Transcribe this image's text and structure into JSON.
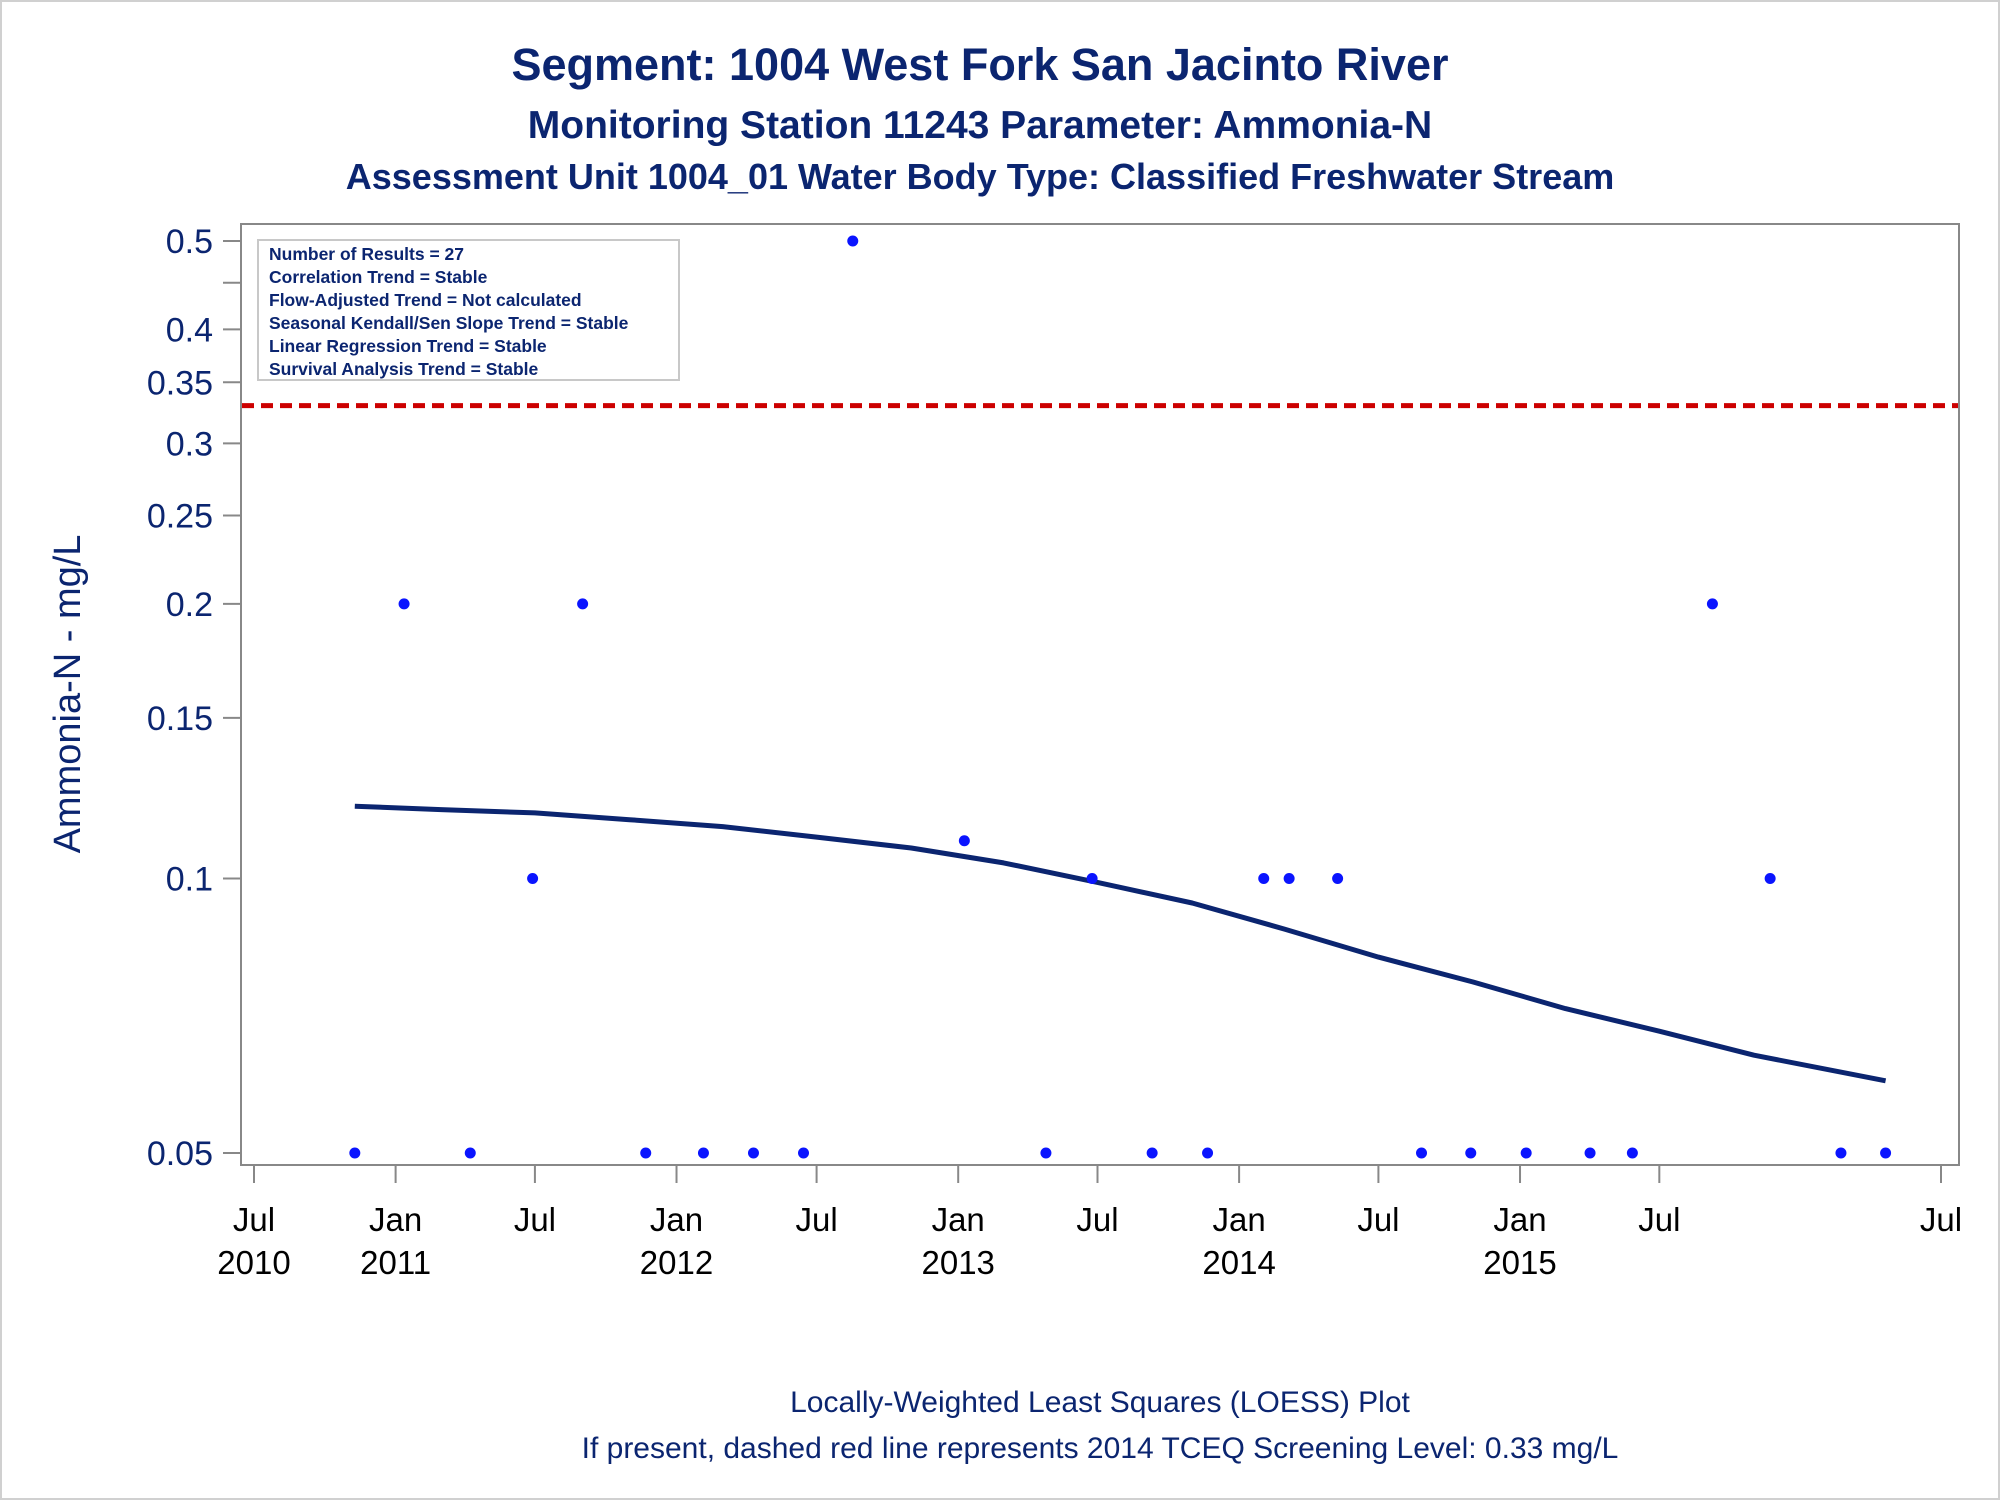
{
  "titles": {
    "line1": "Segment: 1004  West Fork San Jacinto River",
    "line2": "Monitoring Station 11243 Parameter: Ammonia-N",
    "line3": "Assessment Unit 1004_01   Water Body Type: Classified Freshwater Stream"
  },
  "info_box": [
    "Number of Results = 27",
    "Correlation Trend = Stable",
    "Flow-Adjusted Trend = Not calculated",
    "Seasonal Kendall/Sen Slope Trend = Stable",
    "Linear Regression Trend = Stable",
    "Survival Analysis Trend = Stable"
  ],
  "footnotes": {
    "line1": "Locally-Weighted Least Squares (LOESS) Plot",
    "line2": "If present, dashed red line represents 2014 TCEQ Screening Level: 0.33 mg/L"
  },
  "colors": {
    "text": "#0b2570",
    "points": "#0a14ff",
    "loess": "#0b2570",
    "screening": "#cc0000",
    "axis": "#888888"
  },
  "chart_data": {
    "type": "scatter",
    "ylabel": "Ammonia-N - mg/L",
    "y_scale": "log",
    "ylim": [
      0.05,
      0.5
    ],
    "y_ticks": [
      {
        "value": 0.05,
        "label": "0.05"
      },
      {
        "value": 0.1,
        "label": "0.1"
      },
      {
        "value": 0.15,
        "label": "0.15"
      },
      {
        "value": 0.2,
        "label": "0.2"
      },
      {
        "value": 0.25,
        "label": "0.25"
      },
      {
        "value": 0.3,
        "label": "0.3"
      },
      {
        "value": 0.35,
        "label": "0.35"
      },
      {
        "value": 0.4,
        "label": "0.4"
      },
      {
        "value": 0.5,
        "label": "0.5"
      }
    ],
    "y_minor_ticks": [
      0.45
    ],
    "xlim": [
      "2010-07-01",
      "2016-07-01"
    ],
    "x_ticks": [
      {
        "date": "2010-07-01",
        "month": "Jul",
        "year": "2010"
      },
      {
        "date": "2011-01-01",
        "month": "Jan",
        "year": "2011"
      },
      {
        "date": "2011-07-01",
        "month": "Jul",
        "year": ""
      },
      {
        "date": "2012-01-01",
        "month": "Jan",
        "year": "2012"
      },
      {
        "date": "2012-07-01",
        "month": "Jul",
        "year": ""
      },
      {
        "date": "2013-01-01",
        "month": "Jan",
        "year": "2013"
      },
      {
        "date": "2013-07-01",
        "month": "Jul",
        "year": ""
      },
      {
        "date": "2014-01-01",
        "month": "Jan",
        "year": "2014"
      },
      {
        "date": "2014-07-01",
        "month": "Jul",
        "year": ""
      },
      {
        "date": "2015-01-01",
        "month": "Jan",
        "year": "2015"
      },
      {
        "date": "2015-07-01",
        "month": "Jul",
        "year": ""
      }
    ],
    "screening_level": {
      "value": 0.33,
      "style": "dashed"
    },
    "points": [
      {
        "date": "2010-11-09",
        "value": 0.05
      },
      {
        "date": "2011-01-12",
        "value": 0.2
      },
      {
        "date": "2011-04-08",
        "value": 0.05
      },
      {
        "date": "2011-06-28",
        "value": 0.1
      },
      {
        "date": "2011-09-01",
        "value": 0.2
      },
      {
        "date": "2011-11-22",
        "value": 0.05
      },
      {
        "date": "2012-02-05",
        "value": 0.05
      },
      {
        "date": "2012-04-10",
        "value": 0.05
      },
      {
        "date": "2012-06-14",
        "value": 0.05
      },
      {
        "date": "2012-08-17",
        "value": 0.5
      },
      {
        "date": "2013-01-09",
        "value": 0.11
      },
      {
        "date": "2013-04-25",
        "value": 0.05
      },
      {
        "date": "2013-06-24",
        "value": 0.1
      },
      {
        "date": "2013-09-10",
        "value": 0.05
      },
      {
        "date": "2013-11-21",
        "value": 0.05
      },
      {
        "date": "2014-02-02",
        "value": 0.1
      },
      {
        "date": "2014-03-07",
        "value": 0.1
      },
      {
        "date": "2014-05-09",
        "value": 0.1
      },
      {
        "date": "2014-08-26",
        "value": 0.05
      },
      {
        "date": "2014-10-29",
        "value": 0.05
      },
      {
        "date": "2015-01-09",
        "value": 0.05
      },
      {
        "date": "2015-04-02",
        "value": 0.05
      },
      {
        "date": "2015-05-27",
        "value": 0.05
      },
      {
        "date": "2015-09-08",
        "value": 0.2
      },
      {
        "date": "2015-11-22",
        "value": 0.1
      },
      {
        "date": "2016-02-22",
        "value": 0.05
      },
      {
        "date": "2016-04-20",
        "value": 0.05
      }
    ],
    "loess": [
      {
        "date": "2010-11-09",
        "value": 0.12
      },
      {
        "date": "2011-03-01",
        "value": 0.119
      },
      {
        "date": "2011-07-01",
        "value": 0.118
      },
      {
        "date": "2011-11-01",
        "value": 0.116
      },
      {
        "date": "2012-03-01",
        "value": 0.114
      },
      {
        "date": "2012-07-01",
        "value": 0.111
      },
      {
        "date": "2012-11-01",
        "value": 0.108
      },
      {
        "date": "2013-03-01",
        "value": 0.104
      },
      {
        "date": "2013-07-01",
        "value": 0.099
      },
      {
        "date": "2013-11-01",
        "value": 0.094
      },
      {
        "date": "2014-03-01",
        "value": 0.088
      },
      {
        "date": "2014-07-01",
        "value": 0.082
      },
      {
        "date": "2014-11-01",
        "value": 0.077
      },
      {
        "date": "2015-03-01",
        "value": 0.072
      },
      {
        "date": "2015-07-01",
        "value": 0.068
      },
      {
        "date": "2015-11-01",
        "value": 0.064
      },
      {
        "date": "2016-04-20",
        "value": 0.06
      }
    ]
  }
}
